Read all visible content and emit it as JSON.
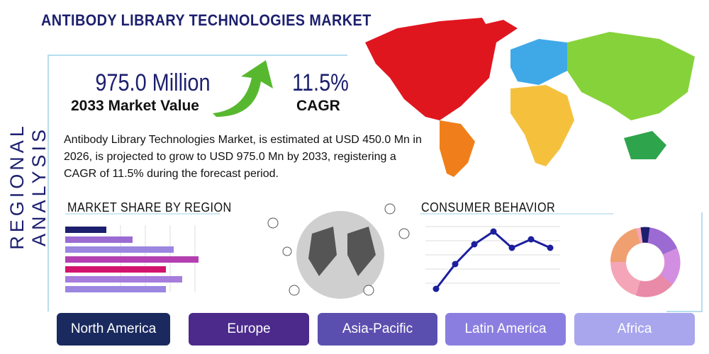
{
  "header": {
    "title": "ANTIBODY LIBRARY TECHNOLOGIES MARKET",
    "side_label": "REGIONAL ANALYSIS"
  },
  "stats": [
    {
      "value": "975.0 Million",
      "label": "2033 Market Value"
    },
    {
      "value": "11.5%",
      "label": "CAGR"
    }
  ],
  "description": "Antibody Library Technologies Market, is estimated at USD 450.0 Mn in 2026, is projected to grow to USD 975.0 Mn by 2033, registering a CAGR of 11.5% during the forecast period.",
  "sections": {
    "market_share": "MARKET SHARE BY REGION",
    "consumer_behavior": "CONSUMER BEHAVIOR"
  },
  "regions": [
    "North America",
    "Europe",
    "Asia-Pacific",
    "Latin America",
    "Africa"
  ]
}
